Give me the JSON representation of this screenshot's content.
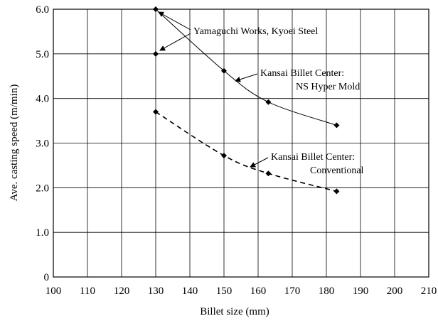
{
  "chart_data": {
    "type": "scatter",
    "xlabel": "Billet size (mm)",
    "ylabel": "Ave. casting speed (m/min)",
    "xlim": [
      100,
      210
    ],
    "xticks": [
      100,
      110,
      120,
      130,
      140,
      150,
      160,
      170,
      180,
      190,
      200,
      210
    ],
    "ylim": [
      0,
      6
    ],
    "yticks": [
      0,
      {
        "value": 1,
        "label": "1.0"
      },
      {
        "value": 2,
        "label": "2.0"
      },
      {
        "value": 3,
        "label": "3.0"
      },
      {
        "value": 4,
        "label": "4.0"
      },
      {
        "value": 5,
        "label": "5.0"
      },
      {
        "value": 6,
        "label": "6.0"
      }
    ],
    "grid": true,
    "series": [
      {
        "color": "#000000",
        "line": "solid",
        "x": [
          130,
          150,
          163,
          183
        ],
        "values": [
          6.0,
          4.62,
          3.92,
          3.4
        ]
      },
      {
        "color": "#000000",
        "line": null,
        "x": [
          130
        ],
        "values": [
          5.0
        ]
      },
      {
        "color": "#000000",
        "line": "dashed",
        "x": [
          130,
          150,
          163,
          183
        ],
        "values": [
          3.7,
          2.72,
          2.32,
          1.92
        ]
      }
    ],
    "annotations": [
      {
        "lines": [
          "Yamaguchi Works, Kyoei Steel"
        ]
      },
      {
        "lines": [
          "Kansai Billet Center:",
          "NS Hyper Mold"
        ]
      },
      {
        "lines": [
          "Kansai Billet Center:",
          "Conventional"
        ]
      }
    ]
  }
}
